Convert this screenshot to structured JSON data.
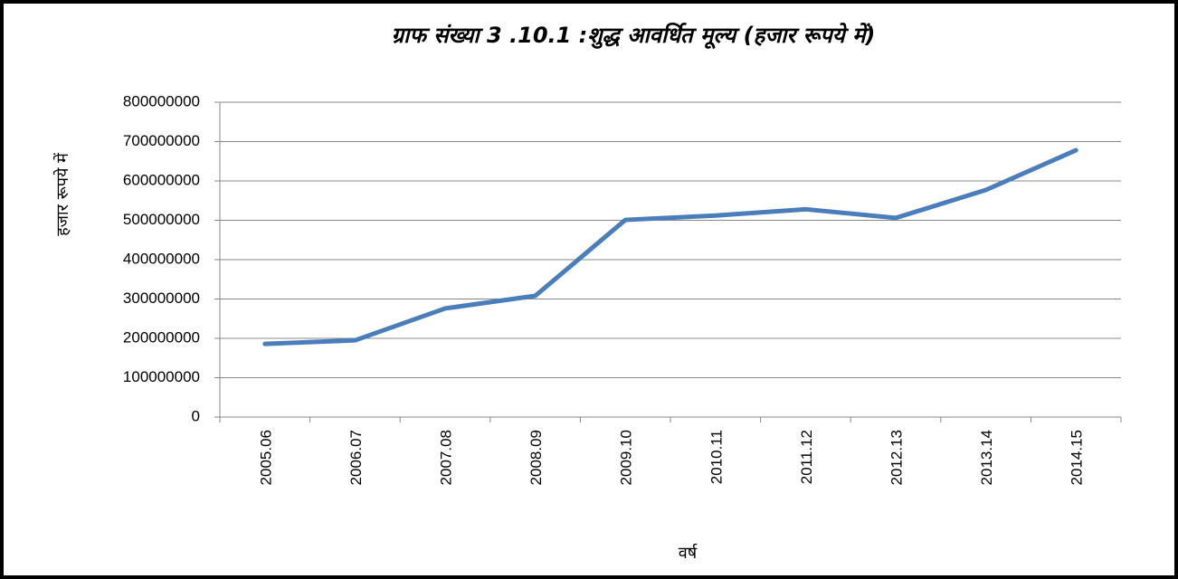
{
  "chart_data": {
    "type": "line",
    "title": "ग्राफ संख्या 3 .10.1 :शुद्ध आवर्धित मूल्य (हजार रूपये में)",
    "ylabel": "हजार रूपये में",
    "xlabel": "वर्ष",
    "categories": [
      "2005.06",
      "2006.07",
      "2007.08",
      "2008.09",
      "2009.10",
      "2010.11",
      "2011.12",
      "2012.13",
      "2013.14",
      "2014.15"
    ],
    "values": [
      186000000,
      195000000,
      276000000,
      308000000,
      501000000,
      512000000,
      528000000,
      506000000,
      577000000,
      678000000
    ],
    "color": "#4a7ebb",
    "ylim": [
      0,
      800000000
    ],
    "yticks": [
      0,
      100000000,
      200000000,
      300000000,
      400000000,
      500000000,
      600000000,
      700000000,
      800000000
    ],
    "grid": true
  }
}
